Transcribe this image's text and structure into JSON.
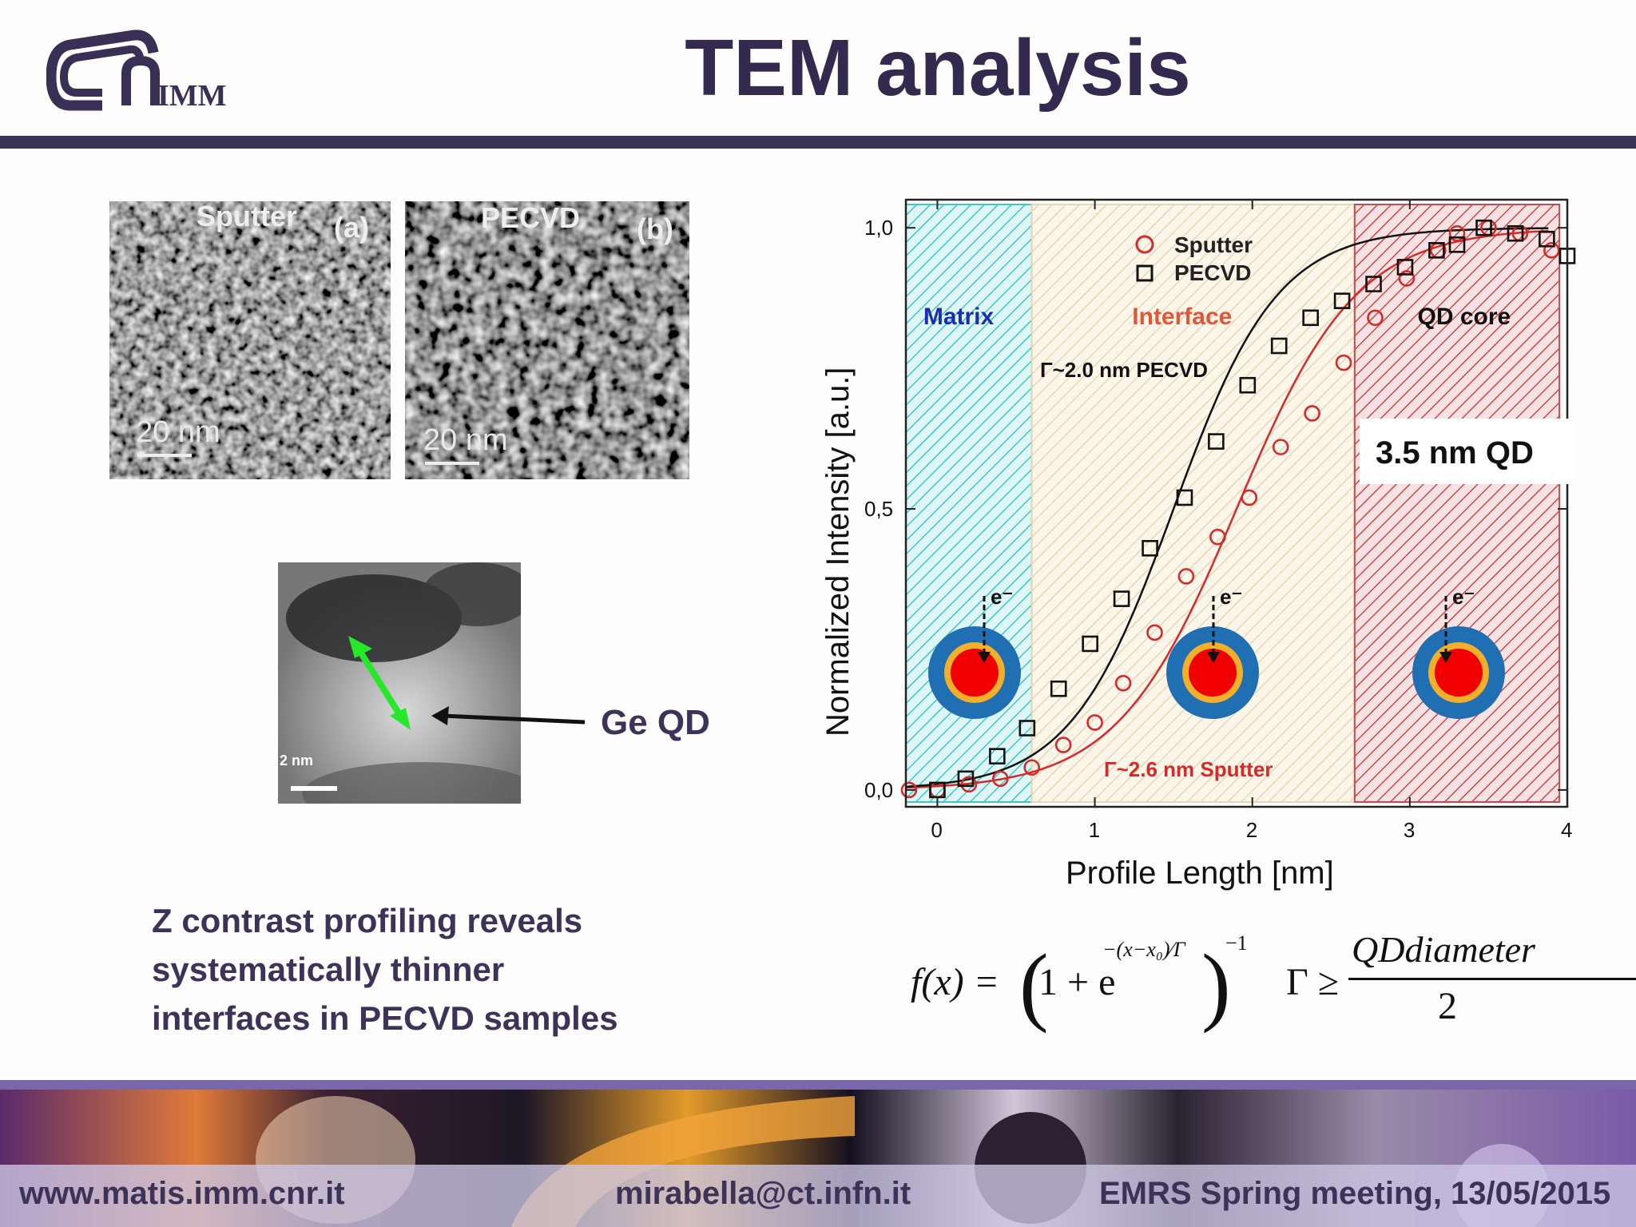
{
  "header": {
    "title": "TEM analysis",
    "logo_text": "IMM"
  },
  "tem_top": {
    "left_label": "Sputter",
    "left_tag": "(a)",
    "right_label": "PECVD",
    "right_tag": "(b)",
    "left_scale": "20  nm",
    "right_scale": "20  nm"
  },
  "tem_small": {
    "scale": "2 nm"
  },
  "ge_qd_label": "Ge QD",
  "caption": {
    "line1": "Z contrast profiling reveals",
    "line2": "systematically thinner",
    "line3": "interfaces in PECVD samples"
  },
  "chart_data": {
    "type": "scatter",
    "xlabel": "Profile Length [nm]",
    "ylabel": "Normalized Intensity [a.u.]",
    "xlim": [
      -0.2,
      4
    ],
    "ylim": [
      -0.03,
      1.05
    ],
    "xticks": [
      "0",
      "1",
      "2",
      "3",
      "4"
    ],
    "yticks": [
      "0,0",
      "0,5",
      "1,0"
    ],
    "regions": [
      {
        "name": "Matrix",
        "from": -0.2,
        "to": 0.6,
        "color": "#3fc6c6"
      },
      {
        "name": "Interface",
        "from": 0.6,
        "to": 2.65,
        "color": "#e8d7b4"
      },
      {
        "name": "QD core",
        "from": 2.65,
        "to": 3.95,
        "color": "#c84a4a"
      }
    ],
    "annotations": {
      "pecvd_fit": "Γ~2.0 nm PECVD",
      "sputter_fit": "Γ~2.6 nm Sputter",
      "qd_size": "3.5 nm QD",
      "electron": "e⁻"
    },
    "series": [
      {
        "name": "Sputter",
        "marker": "circle",
        "color": "#d42a2a",
        "x": [
          -0.18,
          0.0,
          0.2,
          0.4,
          0.6,
          0.8,
          1.0,
          1.18,
          1.38,
          1.58,
          1.78,
          1.98,
          2.18,
          2.38,
          2.58,
          2.78,
          2.98,
          3.18,
          3.3,
          3.5,
          3.7,
          3.9
        ],
        "y": [
          0.0,
          0.0,
          0.01,
          0.02,
          0.04,
          0.08,
          0.12,
          0.19,
          0.28,
          0.38,
          0.45,
          0.52,
          0.61,
          0.67,
          0.76,
          0.84,
          0.91,
          0.96,
          0.99,
          1.0,
          0.99,
          0.96
        ],
        "fit_x0": 1.9,
        "fit_gamma": 0.38
      },
      {
        "name": "PECVD",
        "marker": "square",
        "color": "#111111",
        "x": [
          0.0,
          0.18,
          0.38,
          0.57,
          0.77,
          0.97,
          1.17,
          1.35,
          1.57,
          1.77,
          1.97,
          2.17,
          2.37,
          2.57,
          2.77,
          2.97,
          3.17,
          3.3,
          3.47,
          3.67,
          3.87,
          4.0
        ],
        "y": [
          0.0,
          0.02,
          0.06,
          0.11,
          0.18,
          0.26,
          0.34,
          0.43,
          0.52,
          0.62,
          0.72,
          0.79,
          0.84,
          0.87,
          0.9,
          0.93,
          0.96,
          0.97,
          1.0,
          0.99,
          0.98,
          0.95
        ],
        "fit_x0": 1.5,
        "fit_gamma": 0.33
      }
    ]
  },
  "formula": {
    "lhs": "f(x) =",
    "one_plus": "1 + e",
    "exponent": "−(x−x₀)⁄Γ",
    "power": "−1",
    "gamma_geq": "Γ ≥",
    "numerator": "QDdiameter",
    "denominator": "2"
  },
  "footer": {
    "website": "www.matis.imm.cnr.it",
    "email": "mirabella@ct.infn.it",
    "event": "EMRS Spring meeting, 13/05/2015"
  }
}
